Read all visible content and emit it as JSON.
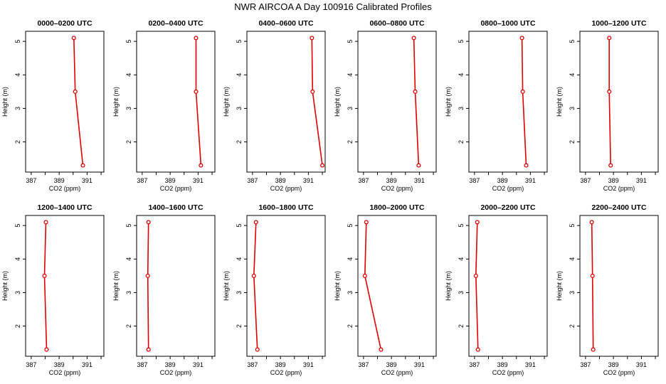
{
  "title": "NWR AIRCOA A  Day 100916  Calibrated Profiles",
  "colors": {
    "series": "#e00000",
    "axis": "#000000"
  },
  "chart_data": [
    {
      "type": "line",
      "title": "0000–0200 UTC",
      "xlabel": "CO2 (ppm)",
      "ylabel": "Height (m)",
      "xlim": [
        386.6,
        392.2
      ],
      "ylim": [
        1.1,
        5.3
      ],
      "xticks": [
        387,
        389,
        391
      ],
      "yticks": [
        2,
        3,
        4,
        5
      ],
      "series": [
        {
          "name": "profile",
          "x": [
            390.7,
            390.15,
            390.05
          ],
          "y": [
            1.3,
            3.5,
            5.1
          ]
        }
      ]
    },
    {
      "type": "line",
      "title": "0200–0400 UTC",
      "xlabel": "CO2 (ppm)",
      "ylabel": "Height (m)",
      "xlim": [
        386.6,
        392.2
      ],
      "ylim": [
        1.1,
        5.3
      ],
      "xticks": [
        387,
        389,
        391
      ],
      "yticks": [
        2,
        3,
        4,
        5
      ],
      "series": [
        {
          "name": "profile",
          "x": [
            391.2,
            390.85,
            390.85
          ],
          "y": [
            1.3,
            3.5,
            5.1
          ]
        }
      ]
    },
    {
      "type": "line",
      "title": "0400–0600 UTC",
      "xlabel": "CO2 (ppm)",
      "ylabel": "Height (m)",
      "xlim": [
        386.6,
        392.2
      ],
      "ylim": [
        1.1,
        5.3
      ],
      "xticks": [
        387,
        389,
        391
      ],
      "yticks": [
        2,
        3,
        4,
        5
      ],
      "series": [
        {
          "name": "profile",
          "x": [
            392.0,
            391.3,
            391.25
          ],
          "y": [
            1.3,
            3.5,
            5.1
          ]
        }
      ]
    },
    {
      "type": "line",
      "title": "0600–0800 UTC",
      "xlabel": "CO2 (ppm)",
      "ylabel": "Height (m)",
      "xlim": [
        386.6,
        392.2
      ],
      "ylim": [
        1.1,
        5.3
      ],
      "xticks": [
        387,
        389,
        391
      ],
      "yticks": [
        2,
        3,
        4,
        5
      ],
      "series": [
        {
          "name": "profile",
          "x": [
            390.95,
            390.7,
            390.6
          ],
          "y": [
            1.3,
            3.5,
            5.1
          ]
        }
      ]
    },
    {
      "type": "line",
      "title": "0800–1000 UTC",
      "xlabel": "CO2 (ppm)",
      "ylabel": "Height (m)",
      "xlim": [
        386.6,
        392.2
      ],
      "ylim": [
        1.1,
        5.3
      ],
      "xticks": [
        387,
        389,
        391
      ],
      "yticks": [
        2,
        3,
        4,
        5
      ],
      "series": [
        {
          "name": "profile",
          "x": [
            390.7,
            390.45,
            390.4
          ],
          "y": [
            1.3,
            3.5,
            5.1
          ]
        }
      ]
    },
    {
      "type": "line",
      "title": "1000–1200 UTC",
      "xlabel": "CO2 (ppm)",
      "ylabel": "Height (m)",
      "xlim": [
        386.6,
        392.2
      ],
      "ylim": [
        1.1,
        5.3
      ],
      "xticks": [
        387,
        389,
        391
      ],
      "yticks": [
        2,
        3,
        4,
        5
      ],
      "series": [
        {
          "name": "profile",
          "x": [
            388.8,
            388.7,
            388.7
          ],
          "y": [
            1.3,
            3.5,
            5.1
          ]
        }
      ]
    },
    {
      "type": "line",
      "title": "1200–1400 UTC",
      "xlabel": "CO2 (ppm)",
      "ylabel": "Height (m)",
      "xlim": [
        386.6,
        392.2
      ],
      "ylim": [
        1.1,
        5.3
      ],
      "xticks": [
        387,
        389,
        391
      ],
      "yticks": [
        2,
        3,
        4,
        5
      ],
      "series": [
        {
          "name": "profile",
          "x": [
            388.1,
            387.95,
            388.05
          ],
          "y": [
            1.3,
            3.5,
            5.1
          ]
        }
      ]
    },
    {
      "type": "line",
      "title": "1400–1600 UTC",
      "xlabel": "CO2 (ppm)",
      "ylabel": "Height (m)",
      "xlim": [
        386.6,
        392.2
      ],
      "ylim": [
        1.1,
        5.3
      ],
      "xticks": [
        387,
        389,
        391
      ],
      "yticks": [
        2,
        3,
        4,
        5
      ],
      "series": [
        {
          "name": "profile",
          "x": [
            387.45,
            387.4,
            387.45
          ],
          "y": [
            1.3,
            3.5,
            5.1
          ]
        }
      ]
    },
    {
      "type": "line",
      "title": "1600–1800 UTC",
      "xlabel": "CO2 (ppm)",
      "ylabel": "Height (m)",
      "xlim": [
        386.6,
        392.2
      ],
      "ylim": [
        1.1,
        5.3
      ],
      "xticks": [
        387,
        389,
        391
      ],
      "yticks": [
        2,
        3,
        4,
        5
      ],
      "series": [
        {
          "name": "profile",
          "x": [
            387.35,
            387.1,
            387.25
          ],
          "y": [
            1.3,
            3.5,
            5.1
          ]
        }
      ]
    },
    {
      "type": "line",
      "title": "1800–2000 UTC",
      "xlabel": "CO2 (ppm)",
      "ylabel": "Height (m)",
      "xlim": [
        386.6,
        392.2
      ],
      "ylim": [
        1.1,
        5.3
      ],
      "xticks": [
        387,
        389,
        391
      ],
      "yticks": [
        2,
        3,
        4,
        5
      ],
      "series": [
        {
          "name": "profile",
          "x": [
            388.25,
            387.1,
            387.2
          ],
          "y": [
            1.3,
            3.5,
            5.1
          ]
        }
      ]
    },
    {
      "type": "line",
      "title": "2000–2200 UTC",
      "xlabel": "CO2 (ppm)",
      "ylabel": "Height (m)",
      "xlim": [
        386.6,
        392.2
      ],
      "ylim": [
        1.1,
        5.3
      ],
      "xticks": [
        387,
        389,
        391
      ],
      "yticks": [
        2,
        3,
        4,
        5
      ],
      "series": [
        {
          "name": "profile",
          "x": [
            387.25,
            387.1,
            387.2
          ],
          "y": [
            1.3,
            3.5,
            5.1
          ]
        }
      ]
    },
    {
      "type": "line",
      "title": "2200–2400 UTC",
      "xlabel": "CO2 (ppm)",
      "ylabel": "Height (m)",
      "xlim": [
        386.6,
        392.2
      ],
      "ylim": [
        1.1,
        5.3
      ],
      "xticks": [
        387,
        389,
        391
      ],
      "yticks": [
        2,
        3,
        4,
        5
      ],
      "series": [
        {
          "name": "profile",
          "x": [
            387.55,
            387.5,
            387.45
          ],
          "y": [
            1.3,
            3.5,
            5.1
          ]
        }
      ]
    }
  ]
}
